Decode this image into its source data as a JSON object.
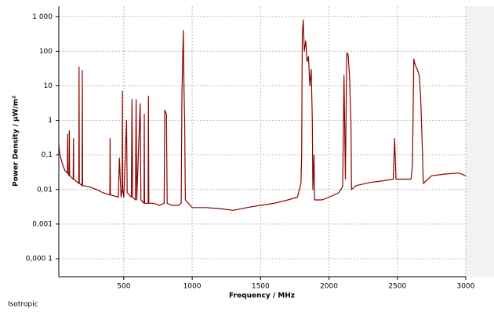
{
  "chart_data": {
    "type": "line",
    "xlabel": "Frequency / MHz",
    "ylabel": "Power Density / µW/m²",
    "footnote": "Isotropic",
    "color": "#8b0000",
    "ylog": true,
    "grid": true,
    "xlim": [
      25,
      3000
    ],
    "ylim": [
      3e-05,
      2000
    ],
    "xticks": [
      500,
      1000,
      1500,
      2000,
      2500,
      3000
    ],
    "yticks": [
      {
        "value": 1000,
        "label": "1 000"
      },
      100,
      10,
      1,
      {
        "value": 0.1,
        "label": "0,1"
      },
      {
        "value": 0.01,
        "label": "0,01"
      },
      {
        "value": 0.001,
        "label": "0,001"
      },
      {
        "value": 0.0001,
        "label": "0,000 1"
      }
    ],
    "x": [
      25,
      30,
      40,
      55,
      70,
      88,
      90,
      92,
      100,
      102,
      104,
      130,
      132,
      134,
      171,
      173,
      175,
      195,
      197,
      199,
      250,
      300,
      350,
      398,
      400,
      402,
      460,
      468,
      480,
      488,
      490,
      492,
      500,
      520,
      525,
      555,
      560,
      565,
      585,
      590,
      595,
      620,
      625,
      648,
      650,
      652,
      678,
      680,
      683,
      720,
      760,
      795,
      800,
      812,
      817,
      850,
      900,
      920,
      925,
      930,
      935,
      940,
      945,
      950,
      1000,
      1100,
      1200,
      1300,
      1400,
      1500,
      1600,
      1700,
      1770,
      1795,
      1800,
      1805,
      1812,
      1820,
      1830,
      1840,
      1850,
      1860,
      1870,
      1878,
      1882,
      1890,
      1895,
      1950,
      2000,
      2070,
      2100,
      2110,
      2120,
      2130,
      2140,
      2150,
      2160,
      2165,
      2200,
      2300,
      2400,
      2470,
      2480,
      2490,
      2550,
      2600,
      2610,
      2620,
      2630,
      2645,
      2660,
      2670,
      2680,
      2690,
      2750,
      2850,
      2950,
      3000
    ],
    "values": [
      0.2,
      0.12,
      0.08,
      0.05,
      0.035,
      0.03,
      0.4,
      0.03,
      0.025,
      0.5,
      0.025,
      0.02,
      0.3,
      0.02,
      0.015,
      35,
      0.015,
      0.013,
      28,
      0.013,
      0.012,
      0.01,
      0.008,
      0.007,
      0.3,
      0.007,
      0.006,
      0.08,
      0.006,
      0.01,
      7,
      0.01,
      0.006,
      1,
      0.008,
      0.006,
      4,
      0.006,
      0.005,
      4,
      0.005,
      3,
      0.005,
      0.004,
      1.5,
      0.004,
      0.004,
      5,
      0.004,
      0.004,
      0.0035,
      0.004,
      2,
      1.5,
      0.004,
      0.0035,
      0.0035,
      0.004,
      5,
      50,
      400,
      10,
      1,
      0.005,
      0.003,
      0.003,
      0.0028,
      0.0025,
      0.003,
      0.0035,
      0.004,
      0.005,
      0.006,
      0.015,
      0.1,
      300,
      800,
      100,
      200,
      50,
      70,
      10,
      30,
      1,
      0.01,
      0.1,
      0.005,
      0.005,
      0.006,
      0.008,
      0.012,
      20,
      0.02,
      90,
      80,
      20,
      1,
      0.01,
      0.013,
      0.016,
      0.018,
      0.02,
      0.3,
      0.02,
      0.02,
      0.02,
      0.05,
      60,
      40,
      30,
      20,
      5,
      0.3,
      0.015,
      0.025,
      0.028,
      0.03,
      0.025
    ]
  }
}
